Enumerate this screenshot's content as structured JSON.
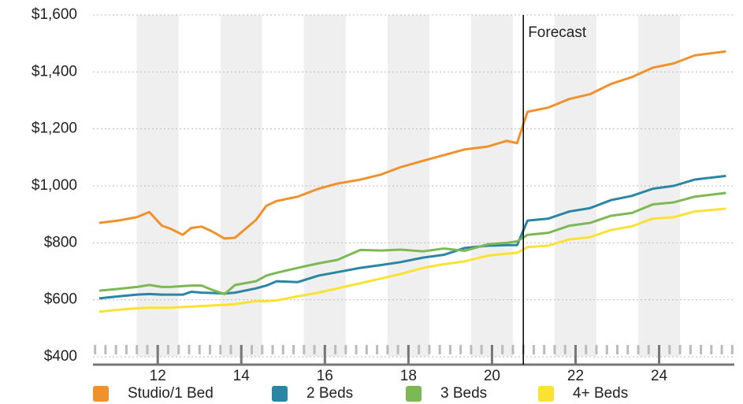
{
  "chart_data": {
    "type": "line",
    "x": [
      10.6,
      11.05,
      11.5,
      11.8,
      12.1,
      12.3,
      12.6,
      12.8,
      13.05,
      13.3,
      13.6,
      13.85,
      14.35,
      14.6,
      14.85,
      15.35,
      15.85,
      16.3,
      16.85,
      17.35,
      17.8,
      18.35,
      18.85,
      19.35,
      19.9,
      20.35,
      20.6,
      20.85,
      21.35,
      21.85,
      22.35,
      22.85,
      23.35,
      23.85,
      24.35,
      24.85,
      25.6
    ],
    "series": [
      {
        "name": "Studio/1 Bed",
        "color": "#f0922b",
        "values": [
          870,
          878,
          890,
          908,
          860,
          850,
          828,
          852,
          857,
          840,
          815,
          818,
          880,
          930,
          947,
          962,
          990,
          1008,
          1022,
          1040,
          1065,
          1088,
          1108,
          1128,
          1138,
          1158,
          1150,
          1260,
          1275,
          1305,
          1322,
          1358,
          1382,
          1415,
          1430,
          1458,
          1472
        ]
      },
      {
        "name": "2 Beds",
        "color": "#2a86a4",
        "values": [
          605,
          612,
          618,
          620,
          618,
          618,
          618,
          628,
          625,
          624,
          622,
          625,
          640,
          650,
          665,
          662,
          685,
          697,
          712,
          722,
          732,
          748,
          758,
          782,
          790,
          792,
          792,
          878,
          885,
          910,
          922,
          950,
          965,
          990,
          1000,
          1022,
          1035
        ]
      },
      {
        "name": "3 Beds",
        "color": "#7cb854",
        "values": [
          632,
          638,
          645,
          652,
          645,
          645,
          648,
          650,
          650,
          635,
          620,
          652,
          665,
          685,
          695,
          712,
          728,
          740,
          775,
          773,
          776,
          770,
          780,
          772,
          795,
          800,
          805,
          828,
          835,
          860,
          870,
          895,
          905,
          935,
          942,
          962,
          975
        ]
      },
      {
        "name": "4+ Beds",
        "color": "#fbe232",
        "values": [
          558,
          565,
          570,
          572,
          572,
          572,
          575,
          576,
          578,
          580,
          582,
          585,
          595,
          595,
          598,
          612,
          625,
          640,
          658,
          675,
          690,
          712,
          725,
          735,
          755,
          762,
          765,
          785,
          790,
          812,
          820,
          845,
          858,
          885,
          890,
          910,
          920
        ]
      }
    ],
    "xlim": [
      10.45,
      25.8
    ],
    "xticks": [
      12,
      14,
      16,
      18,
      20,
      22,
      24
    ],
    "ylim": [
      400,
      1600
    ],
    "yticks": [
      {
        "value": 400,
        "label": "$400"
      },
      {
        "value": 600,
        "label": "$600"
      },
      {
        "value": 800,
        "label": "$800"
      },
      {
        "value": 1000,
        "label": "$1,000"
      },
      {
        "value": 1200,
        "label": "$1,200"
      },
      {
        "value": 1400,
        "label": "$1,400"
      },
      {
        "value": 1600,
        "label": "$1,600"
      }
    ],
    "annotation": {
      "x": 20.75,
      "text": "Forecast"
    }
  }
}
